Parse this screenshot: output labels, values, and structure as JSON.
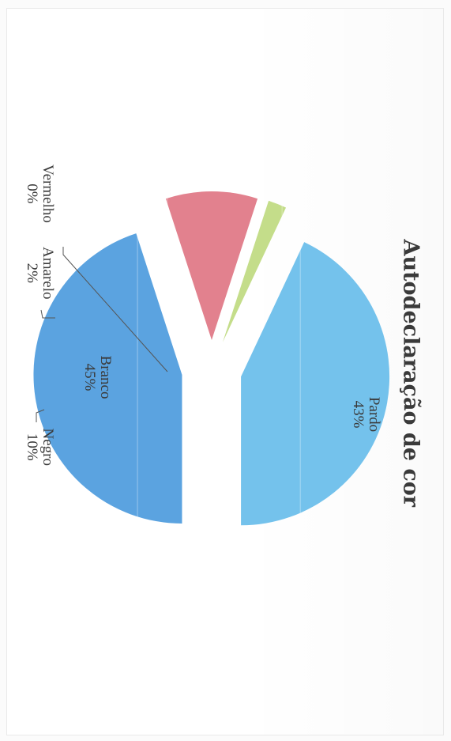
{
  "chart_data": {
    "type": "pie",
    "title": "Autodeclaração de cor",
    "slices": [
      {
        "name": "Branco",
        "value": 45,
        "label": "45%",
        "color": "#5ba3e0"
      },
      {
        "name": "Pardo",
        "value": 43,
        "label": "43%",
        "color": "#74c2ec"
      },
      {
        "name": "Negro",
        "value": 10,
        "label": "10%",
        "color": "#e2818e"
      },
      {
        "name": "Amarelo",
        "value": 2,
        "label": "2%",
        "color": "#c4dd8a"
      },
      {
        "name": "Vermelho",
        "value": 0,
        "label": "0%",
        "color": "#e2818e"
      }
    ],
    "exploded": true,
    "legend": "none",
    "orientation": "rotated 90° clockwise"
  }
}
